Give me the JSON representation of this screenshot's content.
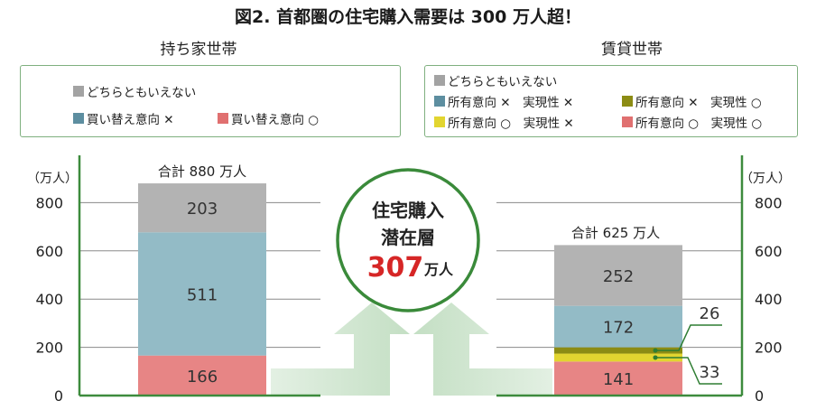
{
  "title": "図2. 首都圏の住宅購入需要は 300 万人超！",
  "colors": {
    "gray": "#b3b3b3",
    "blue": "#93bbc6",
    "red": "#e78585",
    "olive": "#8c8c14",
    "yellow": "#e2d530",
    "green": "#2e7d32",
    "axis_green": "#3d8b3d"
  },
  "left": {
    "subtitle": "持ち家世帯",
    "legend": [
      {
        "label": "どちらともいえない",
        "color": "#a3a3a3"
      },
      {
        "label": "買い替え意向 ✕",
        "color": "#5d8ea0"
      },
      {
        "label": "買い替え意向 ○",
        "color": "#e07070"
      }
    ],
    "total_label": "合計 880 万人",
    "unit": "（万人）"
  },
  "right": {
    "subtitle": "賃貸世帯",
    "legend": [
      {
        "label": "どちらともいえない",
        "color": "#a3a3a3"
      },
      {
        "label": "所有意向 ✕　実現性 ✕",
        "color": "#5d8ea0"
      },
      {
        "label": "所有意向 ✕　実現性 ○",
        "color": "#8c8c14"
      },
      {
        "label": "所有意向 ○　実現性 ✕",
        "color": "#e2d530"
      },
      {
        "label": "所有意向 ○　実現性 ○",
        "color": "#e07070"
      }
    ],
    "total_label": "合計 625 万人",
    "unit": "（万人）"
  },
  "center": {
    "line1": "住宅購入",
    "line2": "潜在層",
    "value": "307",
    "unit": "万人"
  },
  "chart_data": [
    {
      "type": "bar",
      "stacked": true,
      "categories": [
        "持ち家世帯"
      ],
      "ylim": [
        0,
        900
      ],
      "yticks": [
        0,
        200,
        400,
        600,
        800
      ],
      "ylabel": "（万人）",
      "series": [
        {
          "name": "買い替え意向 ○",
          "values": [
            166
          ]
        },
        {
          "name": "買い替え意向 ✕",
          "values": [
            511
          ]
        },
        {
          "name": "どちらともいえない",
          "values": [
            203
          ]
        }
      ],
      "total": 880
    },
    {
      "type": "bar",
      "stacked": true,
      "categories": [
        "賃貸世帯"
      ],
      "ylim": [
        0,
        900
      ],
      "yticks": [
        0,
        200,
        400,
        600,
        800
      ],
      "ylabel": "（万人）",
      "series": [
        {
          "name": "所有意向 ○　実現性 ○",
          "values": [
            141
          ]
        },
        {
          "name": "所有意向 ○　実現性 ✕",
          "values": [
            33
          ]
        },
        {
          "name": "所有意向 ✕　実現性 ○",
          "values": [
            26
          ]
        },
        {
          "name": "所有意向 ✕　実現性 ✕",
          "values": [
            172
          ]
        },
        {
          "name": "どちらともいえない",
          "values": [
            252
          ]
        }
      ],
      "total": 625
    }
  ]
}
